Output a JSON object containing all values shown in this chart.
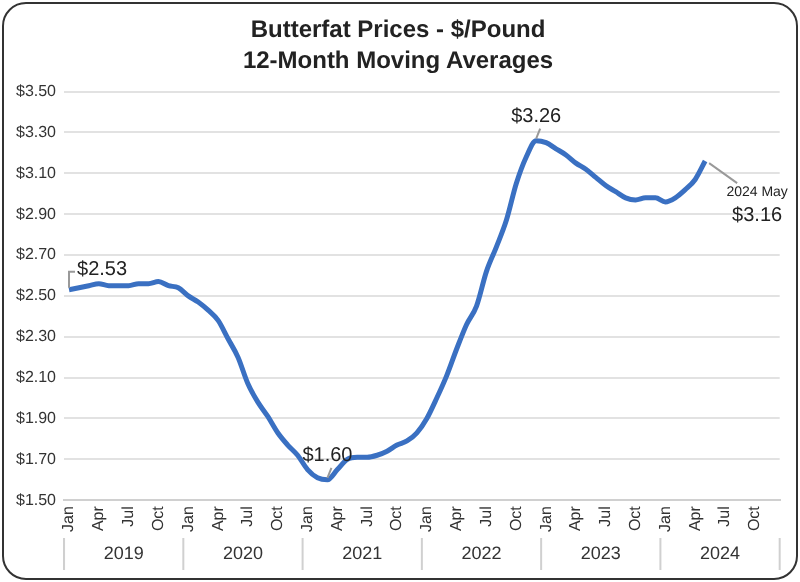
{
  "chart_data": {
    "type": "line",
    "title": "Butterfat Prices - $/Pound",
    "subtitle": "12-Month Moving Averages",
    "categories": [
      "Jan",
      null,
      null,
      "Apr",
      null,
      null,
      "Jul",
      null,
      null,
      "Oct",
      null,
      null,
      "Jan",
      null,
      null,
      "Apr",
      null,
      null,
      "Jul",
      null,
      null,
      "Oct",
      null,
      null,
      "Jan",
      null,
      null,
      "Apr",
      null,
      null,
      "Jul",
      null,
      null,
      "Oct",
      null,
      null,
      "Jan",
      null,
      null,
      "Apr",
      null,
      null,
      "Jul",
      null,
      null,
      "Oct",
      null,
      null,
      "Jan",
      null,
      null,
      "Apr",
      null,
      null,
      "Jul",
      null,
      null,
      "Oct",
      null,
      null,
      "Jan",
      null,
      null,
      "Apr",
      null,
      null,
      "Jul",
      null,
      null,
      "Oct",
      null,
      null
    ],
    "series": [
      {
        "color": "#3a70c2",
        "value_labels": [
          "$2.53",
          null,
          null,
          null,
          null,
          null,
          null,
          null,
          null,
          null,
          null,
          null,
          null,
          null,
          null,
          null,
          null,
          null,
          null,
          null,
          null,
          null,
          null,
          null,
          null,
          null,
          "$1.60",
          null,
          null,
          null,
          null,
          null,
          null,
          null,
          null,
          null,
          null,
          null,
          null,
          null,
          null,
          null,
          null,
          null,
          null,
          null,
          null,
          "$3.26",
          null,
          null,
          null,
          null,
          null,
          null,
          null,
          null,
          null,
          null,
          null,
          null,
          null,
          null,
          null,
          null,
          "$3.16",
          null,
          null,
          null,
          null,
          null,
          null,
          null
        ],
        "values": [
          2.53,
          2.54,
          2.55,
          2.56,
          2.55,
          2.55,
          2.55,
          2.56,
          2.56,
          2.57,
          2.55,
          2.54,
          2.5,
          2.47,
          2.43,
          2.38,
          2.29,
          2.2,
          2.07,
          1.98,
          1.91,
          1.83,
          1.77,
          1.72,
          1.65,
          1.61,
          1.6,
          1.65,
          1.7,
          1.71,
          1.71,
          1.72,
          1.74,
          1.77,
          1.79,
          1.83,
          1.9,
          2.0,
          2.11,
          2.24,
          2.36,
          2.45,
          2.62,
          2.74,
          2.87,
          3.05,
          3.18,
          3.26,
          3.25,
          3.22,
          3.19,
          3.15,
          3.12,
          3.08,
          3.04,
          3.01,
          2.98,
          2.97,
          2.98,
          2.98,
          2.96,
          2.98,
          3.02,
          3.07,
          3.16,
          null,
          null,
          null,
          null,
          null,
          null,
          null
        ]
      }
    ],
    "ylim": [
      1.5,
      3.5
    ],
    "yticks": [
      {
        "value": 1.5,
        "label": "$1.50"
      },
      {
        "value": 1.7,
        "label": "$1.70"
      },
      {
        "value": 1.9,
        "label": "$1.90"
      },
      {
        "value": 2.1,
        "label": "$2.10"
      },
      {
        "value": 2.3,
        "label": "$2.30"
      },
      {
        "value": 2.5,
        "label": "$2.50"
      },
      {
        "value": 2.7,
        "label": "$2.70"
      },
      {
        "value": 2.9,
        "label": "$2.90"
      },
      {
        "value": 3.1,
        "label": "$3.10"
      },
      {
        "value": 3.3,
        "label": "$3.30"
      },
      {
        "value": 3.5,
        "label": "$3.50"
      }
    ],
    "grid": "y",
    "legend": false,
    "marker": "none",
    "line_style": "solid",
    "annotations": [
      "2024 May",
      "2019",
      "2020",
      "2021",
      "2022",
      "2023",
      "2024"
    ]
  }
}
